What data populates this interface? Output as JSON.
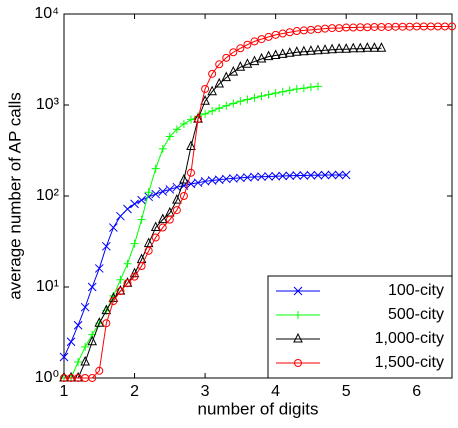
{
  "chart_data": {
    "type": "line",
    "xlabel": "number of digits",
    "ylabel": "average number of AP calls",
    "x": [
      1.0,
      1.1,
      1.2,
      1.3,
      1.4,
      1.5,
      1.6,
      1.7,
      1.8,
      1.9,
      2.0,
      2.1,
      2.2,
      2.3,
      2.4,
      2.5,
      2.6,
      2.7,
      2.8,
      2.9,
      3.0,
      3.1,
      3.2,
      3.3,
      3.4,
      3.5,
      3.6,
      3.7,
      3.8,
      3.9,
      4.0,
      4.1,
      4.2,
      4.3,
      4.4,
      4.5,
      4.6,
      4.7,
      4.8,
      4.9,
      5.0,
      5.1,
      5.2,
      5.3,
      5.4,
      5.5,
      5.6,
      5.7,
      5.8,
      5.9,
      6.0,
      6.1,
      6.2,
      6.3,
      6.4,
      6.5
    ],
    "series": [
      {
        "name": "100-city",
        "color": "#0000ff",
        "marker": "x",
        "values": [
          1.7,
          2.5,
          3.8,
          6,
          10,
          16,
          28,
          45,
          60,
          72,
          82,
          90,
          98,
          105,
          112,
          118,
          125,
          130,
          136,
          140,
          145,
          148,
          151,
          154,
          156,
          158,
          160,
          162,
          163,
          164,
          165,
          166,
          167,
          168,
          168,
          169,
          169,
          170,
          170,
          170,
          170,
          null,
          null,
          null,
          null,
          null,
          null,
          null,
          null,
          null,
          null,
          null,
          null,
          null,
          null,
          null
        ]
      },
      {
        "name": "500-city",
        "color": "#00ff00",
        "marker": "plus",
        "values": [
          1,
          1,
          1.5,
          2.2,
          3,
          4,
          5.5,
          8,
          12,
          18,
          30,
          55,
          110,
          200,
          330,
          450,
          540,
          620,
          690,
          750,
          800,
          860,
          920,
          980,
          1040,
          1100,
          1150,
          1200,
          1250,
          1300,
          1350,
          1400,
          1450,
          1500,
          1530,
          1570,
          1600,
          null,
          null,
          null,
          null,
          null,
          null,
          null,
          null,
          null,
          null,
          null,
          null,
          null,
          null,
          null,
          null,
          null,
          null,
          null
        ]
      },
      {
        "name": "1,000-city",
        "color": "#000000",
        "marker": "triangle",
        "values": [
          1,
          1,
          1,
          1.5,
          2.5,
          4,
          5.5,
          7.5,
          9,
          11,
          14,
          20,
          30,
          45,
          55,
          65,
          90,
          150,
          350,
          700,
          1100,
          1400,
          1700,
          2000,
          2300,
          2600,
          2800,
          3000,
          3200,
          3400,
          3500,
          3600,
          3700,
          3800,
          3850,
          3900,
          3950,
          4000,
          4050,
          4100,
          4100,
          4150,
          4150,
          4200,
          4200,
          4200,
          null,
          null,
          null,
          null,
          null,
          null,
          null,
          null,
          null,
          null
        ]
      },
      {
        "name": "1,500-city",
        "color": "#ff0000",
        "marker": "circle",
        "values": [
          1,
          1,
          1,
          1,
          1,
          1.2,
          4,
          7,
          9,
          11,
          13,
          17,
          25,
          35,
          45,
          55,
          70,
          100,
          180,
          700,
          1500,
          2200,
          2800,
          3300,
          3800,
          4200,
          4600,
          5000,
          5300,
          5600,
          5900,
          6100,
          6300,
          6500,
          6600,
          6700,
          6800,
          6900,
          7000,
          7000,
          7100,
          7100,
          7150,
          7150,
          7200,
          7200,
          7200,
          7250,
          7250,
          7250,
          7300,
          7300,
          7300,
          7300,
          7300,
          7300
        ]
      }
    ],
    "xlim": [
      1,
      6.5
    ],
    "xticks": [
      1,
      2,
      3,
      4,
      5,
      6
    ],
    "ylim": [
      1,
      10000
    ],
    "yscale": "log",
    "yticks": [
      {
        "value": 1,
        "label": "10⁰"
      },
      {
        "value": 10,
        "label": "10¹"
      },
      {
        "value": 100,
        "label": "10²"
      },
      {
        "value": 1000,
        "label": "10³"
      },
      {
        "value": 10000,
        "label": "10⁴"
      }
    ],
    "legend": "lower right"
  }
}
